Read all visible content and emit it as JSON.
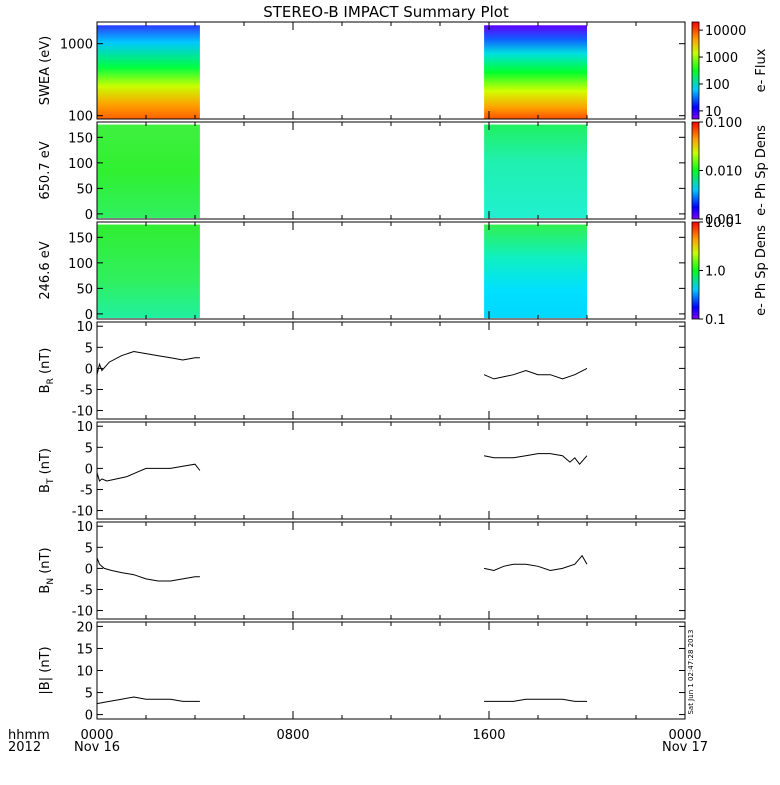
{
  "title": "STEREO-B IMPACT Summary Plot",
  "stamp": "Sat Jun 1 02:47:28 2013",
  "time_axis": {
    "row1_labels": [
      "hhmm",
      "0000",
      "0800",
      "1600",
      "0000"
    ],
    "row2_labels": [
      "2012",
      "Nov 16",
      "",
      "",
      "Nov 17"
    ],
    "range_hours": [
      0,
      24
    ]
  },
  "chart_data": [
    {
      "type": "heatmap",
      "ylabel": "SWEA (eV)",
      "y_scale": "log",
      "ylim": [
        90,
        2000
      ],
      "y_ticks": [
        "1000",
        "100"
      ],
      "colorbar": {
        "label": "e- Flux",
        "scale": "log",
        "range": [
          5,
          20000
        ],
        "ticks": [
          "10000",
          "1000",
          "100",
          "10"
        ]
      },
      "data_intervals_hours": [
        [
          0,
          4.2
        ],
        [
          15.8,
          20
        ]
      ]
    },
    {
      "type": "heatmap",
      "ylabel": "650.7 eV",
      "ylim": [
        -10,
        180
      ],
      "y_ticks": [
        "150",
        "100",
        "50",
        "0"
      ],
      "colorbar": {
        "label": "e- Ph Sp Dens",
        "scale": "log",
        "range": [
          0.001,
          0.1
        ],
        "ticks": [
          "0.100",
          "0.010",
          "0.001"
        ]
      },
      "data_intervals_hours": [
        [
          0,
          4.2
        ],
        [
          15.8,
          20
        ]
      ]
    },
    {
      "type": "heatmap",
      "ylabel": "246.6 eV",
      "ylim": [
        -10,
        180
      ],
      "y_ticks": [
        "150",
        "100",
        "50",
        "0"
      ],
      "colorbar": {
        "label": "e- Ph Sp Dens",
        "scale": "log",
        "range": [
          0.1,
          10
        ],
        "ticks": [
          "10.0",
          "1.0",
          "0.1"
        ]
      },
      "data_intervals_hours": [
        [
          0,
          4.2
        ],
        [
          15.8,
          20
        ]
      ]
    },
    {
      "type": "line",
      "ylabel": "B",
      "ylabel_sub": "R",
      "ylabel_unit": " (nT)",
      "ylim": [
        -12,
        11
      ],
      "y_ticks": [
        "10",
        "5",
        "0",
        "-5",
        "-10"
      ],
      "segments": [
        {
          "x": [
            0,
            0.1,
            0.2,
            0.5,
            1.0,
            1.5,
            2.0,
            2.5,
            3.0,
            3.5,
            4.0,
            4.2
          ],
          "y": [
            -1.5,
            1.0,
            -0.5,
            1.5,
            3.0,
            4.0,
            3.5,
            3.0,
            2.5,
            2.0,
            2.5,
            2.5
          ]
        },
        {
          "x": [
            15.8,
            16.2,
            16.6,
            17.0,
            17.5,
            18.0,
            18.5,
            19.0,
            19.5,
            20.0
          ],
          "y": [
            -1.5,
            -2.5,
            -2.0,
            -1.5,
            -0.5,
            -1.5,
            -1.5,
            -2.5,
            -1.5,
            0.0
          ]
        }
      ]
    },
    {
      "type": "line",
      "ylabel": "B",
      "ylabel_sub": "T",
      "ylabel_unit": " (nT)",
      "ylim": [
        -12,
        11
      ],
      "y_ticks": [
        "10",
        "5",
        "0",
        "-5",
        "-10"
      ],
      "segments": [
        {
          "x": [
            0,
            0.1,
            0.2,
            0.4,
            0.8,
            1.2,
            1.6,
            2.0,
            2.5,
            3.0,
            3.5,
            4.0,
            4.2
          ],
          "y": [
            -1.0,
            -3.0,
            -2.5,
            -3.0,
            -2.5,
            -2.0,
            -1.0,
            0.0,
            0.0,
            0.0,
            0.5,
            1.0,
            -0.5
          ]
        },
        {
          "x": [
            15.8,
            16.2,
            16.6,
            17.0,
            17.5,
            18.0,
            18.5,
            19.0,
            19.3,
            19.5,
            19.7,
            20.0
          ],
          "y": [
            3.0,
            2.5,
            2.5,
            2.5,
            3.0,
            3.5,
            3.5,
            3.0,
            1.5,
            2.5,
            1.0,
            3.0
          ]
        }
      ]
    },
    {
      "type": "line",
      "ylabel": "B",
      "ylabel_sub": "N",
      "ylabel_unit": " (nT)",
      "ylim": [
        -12,
        11
      ],
      "y_ticks": [
        "10",
        "5",
        "0",
        "-5",
        "-10"
      ],
      "segments": [
        {
          "x": [
            0,
            0.1,
            0.3,
            0.6,
            1.0,
            1.5,
            2.0,
            2.5,
            3.0,
            3.5,
            4.0,
            4.2
          ],
          "y": [
            2.5,
            1.0,
            0.0,
            -0.5,
            -1.0,
            -1.5,
            -2.5,
            -3.0,
            -3.0,
            -2.5,
            -2.0,
            -2.0
          ]
        },
        {
          "x": [
            15.8,
            16.2,
            16.6,
            17.0,
            17.5,
            18.0,
            18.5,
            19.0,
            19.5,
            19.8,
            20.0
          ],
          "y": [
            0.0,
            -0.5,
            0.5,
            1.0,
            1.0,
            0.5,
            -0.5,
            0.0,
            1.0,
            3.0,
            1.0
          ]
        }
      ]
    },
    {
      "type": "line",
      "ylabel": "|B|",
      "ylabel_unit": " (nT)",
      "ylim": [
        -1,
        21
      ],
      "y_ticks": [
        "20",
        "15",
        "10",
        "5",
        "0"
      ],
      "segments": [
        {
          "x": [
            0,
            0.5,
            1.0,
            1.5,
            2.0,
            2.5,
            3.0,
            3.5,
            4.0,
            4.2
          ],
          "y": [
            2.5,
            3.0,
            3.5,
            4.0,
            3.5,
            3.5,
            3.5,
            3.0,
            3.0,
            3.0
          ]
        },
        {
          "x": [
            15.8,
            16.5,
            17.0,
            17.5,
            18.0,
            18.5,
            19.0,
            19.5,
            20.0
          ],
          "y": [
            3.0,
            3.0,
            3.0,
            3.5,
            3.5,
            3.5,
            3.5,
            3.0,
            3.0
          ]
        }
      ]
    }
  ]
}
